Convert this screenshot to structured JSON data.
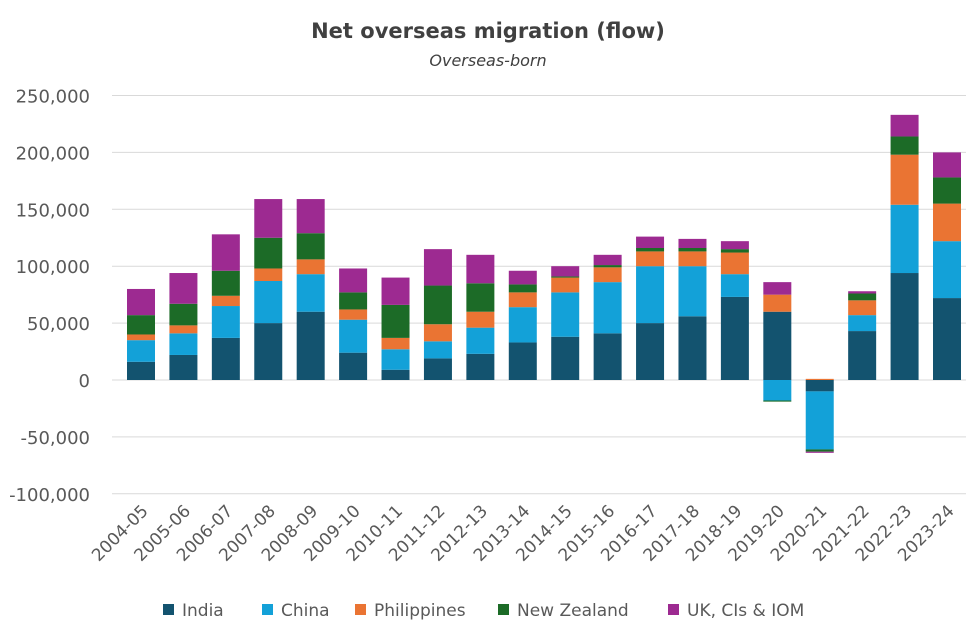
{
  "chart_data": {
    "type": "bar",
    "stacked": true,
    "title": "Net overseas migration (flow)",
    "subtitle": "Overseas-born",
    "xlabel": "",
    "ylabel": "",
    "ylim": [
      -100000,
      250000
    ],
    "yticks": [
      250000,
      200000,
      150000,
      100000,
      50000,
      0,
      -50000,
      -100000
    ],
    "ytick_labels": [
      "250,000",
      "200,000",
      "150,000",
      "100,000",
      "50,000",
      "0",
      "-50,000",
      "-100,000"
    ],
    "grid": true,
    "legend_position": "bottom",
    "categories": [
      "2004-05",
      "2005-06",
      "2006-07",
      "2007-08",
      "2008-09",
      "2009-10",
      "2010-11",
      "2011-12",
      "2012-13",
      "2013-14",
      "2014-15",
      "2015-16",
      "2016-17",
      "2017-18",
      "2018-19",
      "2019-20",
      "2020-21",
      "2021-22",
      "2022-23",
      "2023-24"
    ],
    "series": [
      {
        "name": "India",
        "color": "#13536f",
        "values": [
          16000,
          22000,
          37000,
          50000,
          60000,
          24000,
          9000,
          19000,
          23000,
          33000,
          38000,
          41000,
          50000,
          56000,
          73000,
          60000,
          -10000,
          43000,
          94000,
          72000
        ]
      },
      {
        "name": "China",
        "color": "#13a1d8",
        "values": [
          19000,
          19000,
          28000,
          37000,
          33000,
          29000,
          18000,
          15000,
          23000,
          31000,
          39000,
          45000,
          50000,
          44000,
          20000,
          -18000,
          -51000,
          14000,
          60000,
          50000
        ]
      },
      {
        "name": "Philippines",
        "color": "#ea7433",
        "values": [
          5000,
          7000,
          9000,
          11000,
          13000,
          9000,
          10000,
          15000,
          14000,
          13000,
          13000,
          13000,
          13000,
          13000,
          19000,
          15000,
          1000,
          13000,
          44000,
          33000
        ]
      },
      {
        "name": "New Zealand",
        "color": "#1c6b27",
        "values": [
          17000,
          19000,
          22000,
          27000,
          23000,
          15000,
          29000,
          34000,
          25000,
          7000,
          1000,
          2000,
          3000,
          3000,
          3000,
          -1000,
          -2000,
          6000,
          16000,
          23000
        ]
      },
      {
        "name": "UK, CIs & IOM",
        "color": "#9d2a91",
        "values": [
          23000,
          27000,
          32000,
          34000,
          30000,
          21000,
          24000,
          32000,
          25000,
          12000,
          9000,
          9000,
          10000,
          8000,
          7000,
          11000,
          -1000,
          2000,
          19000,
          22000
        ]
      }
    ]
  }
}
